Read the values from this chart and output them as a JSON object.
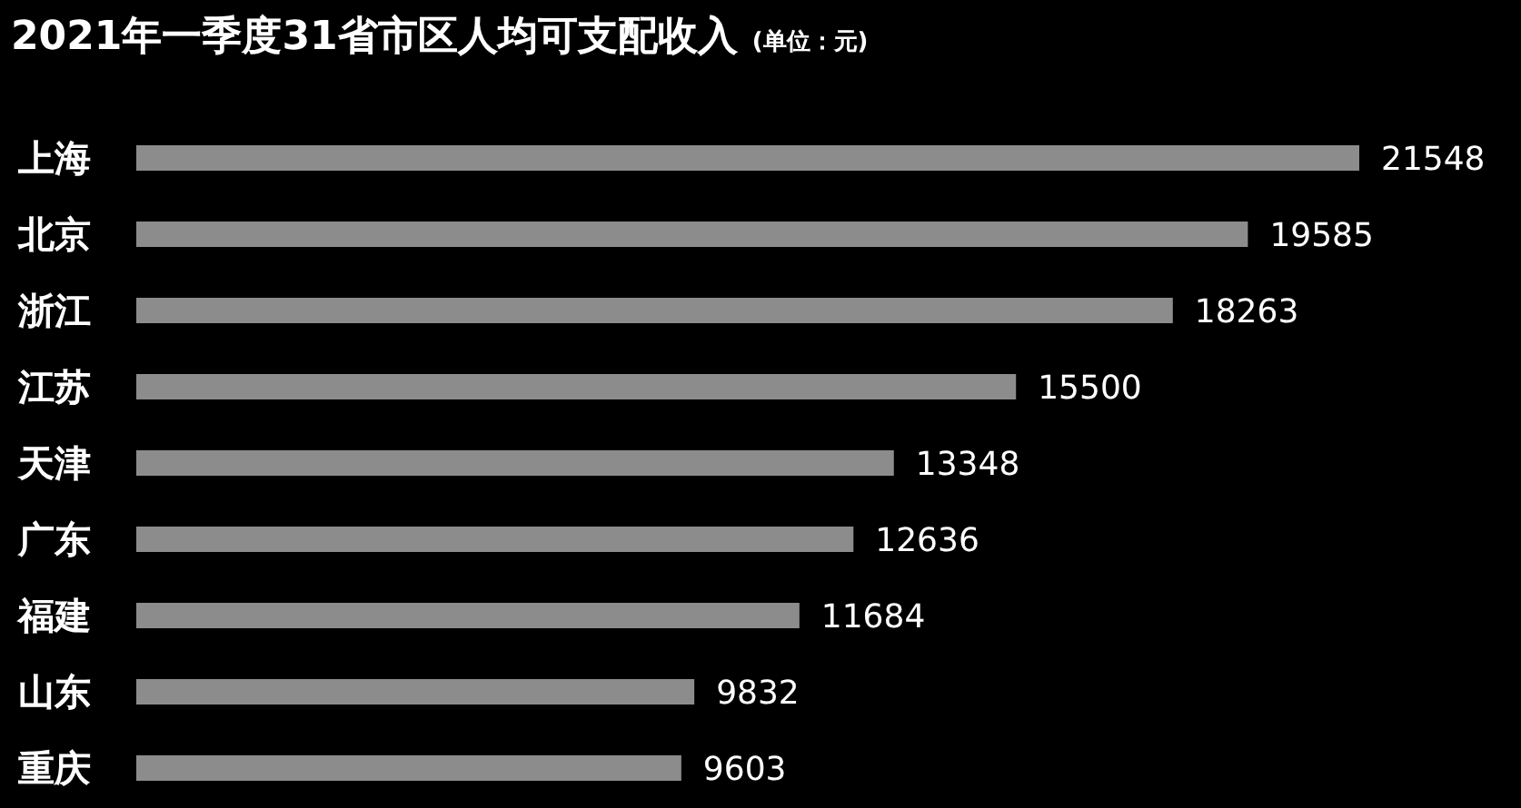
{
  "chart_data": {
    "type": "bar",
    "orientation": "horizontal",
    "title": "2021年一季度31省市区人均可支配收入",
    "subtitle": "(单位：元)",
    "categories": [
      "上海",
      "北京",
      "浙江",
      "江苏",
      "天津",
      "广东",
      "福建",
      "山东",
      "重庆"
    ],
    "values": [
      21548,
      19585,
      18263,
      15500,
      13348,
      12636,
      11684,
      9832,
      9603
    ],
    "color": "#8c8c8c",
    "data_labels": true
  }
}
